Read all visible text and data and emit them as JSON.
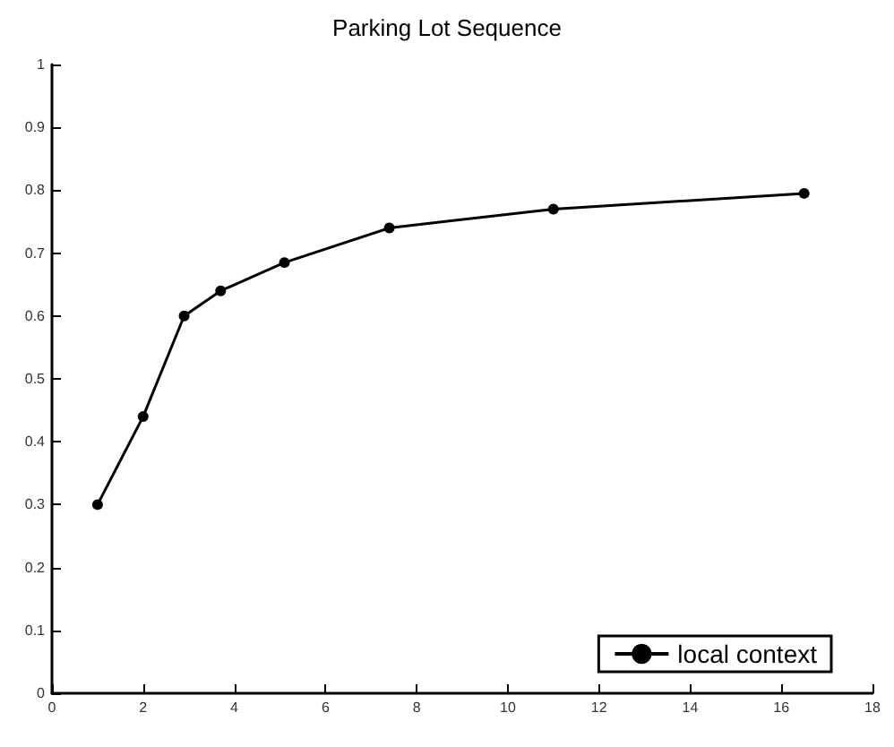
{
  "chart_data": {
    "type": "line",
    "title": "Parking Lot Sequence",
    "series": [
      {
        "name": "local context",
        "color": "#000000",
        "x": [
          1.0,
          2.0,
          2.9,
          3.7,
          5.1,
          7.4,
          11.0,
          16.5
        ],
        "values": [
          0.3,
          0.44,
          0.6,
          0.64,
          0.685,
          0.74,
          0.77,
          0.795
        ]
      }
    ],
    "xlim": [
      0,
      18
    ],
    "xticks": [
      0,
      2,
      4,
      6,
      8,
      10,
      12,
      14,
      16,
      18
    ],
    "ylim": [
      0,
      1
    ],
    "yticks": [
      0,
      0.1,
      0.2,
      0.3,
      0.4,
      0.5,
      0.6,
      0.7,
      0.8,
      0.9,
      1
    ],
    "grid": false,
    "legend": "bottom right",
    "marker": "circle",
    "line_style": "solid"
  }
}
